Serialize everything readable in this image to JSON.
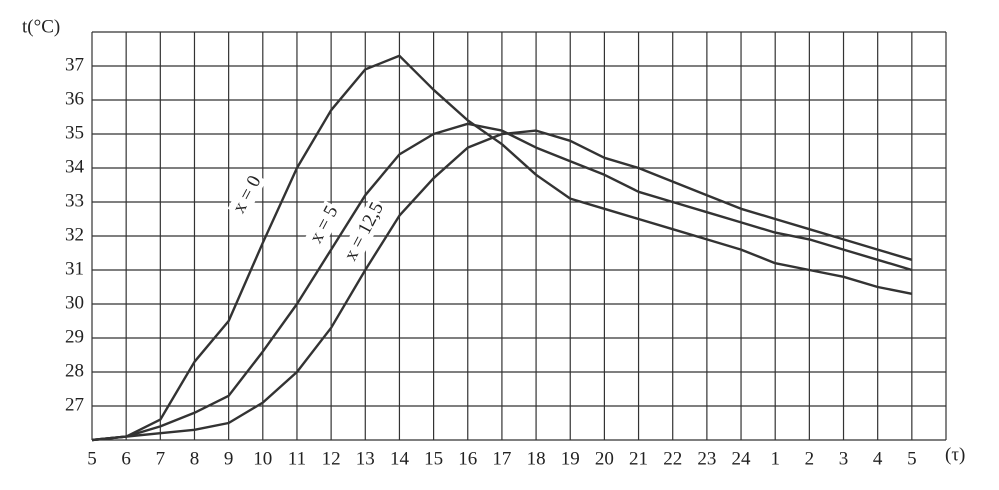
{
  "chart_data": {
    "type": "line",
    "y_label": "t(°C)",
    "x_label": "(τ)",
    "categories": [
      5,
      6,
      7,
      8,
      9,
      10,
      11,
      12,
      13,
      14,
      15,
      16,
      17,
      18,
      19,
      20,
      21,
      22,
      23,
      24,
      1,
      2,
      3,
      4,
      5
    ],
    "ylim": [
      26,
      38
    ],
    "yticks": [
      27,
      28,
      29,
      30,
      31,
      32,
      33,
      34,
      35,
      36,
      37
    ],
    "grid": true,
    "series": [
      {
        "name": "x = 0",
        "color": "#333333",
        "values": [
          26,
          26.1,
          26.6,
          28.3,
          29.5,
          31.8,
          34,
          35.7,
          36.9,
          37.3,
          36.3,
          35.4,
          34.7,
          33.8,
          33.1,
          32.8,
          32.5,
          32.2,
          31.9,
          31.6,
          31.2,
          31.0,
          30.8,
          30.5,
          30.3
        ]
      },
      {
        "name": "x = 5",
        "color": "#333333",
        "values": [
          26,
          26.1,
          26.4,
          26.8,
          27.3,
          28.6,
          30,
          31.6,
          33.2,
          34.4,
          35,
          35.3,
          35.1,
          34.6,
          34.2,
          33.8,
          33.3,
          33.0,
          32.7,
          32.4,
          32.1,
          31.9,
          31.6,
          31.3,
          31.0
        ]
      },
      {
        "name": "x = 12,5",
        "color": "#333333",
        "values": [
          26,
          26.1,
          26.2,
          26.3,
          26.5,
          27.1,
          28,
          29.3,
          31,
          32.6,
          33.7,
          34.6,
          35.0,
          35.1,
          34.8,
          34.3,
          34.0,
          33.6,
          33.2,
          32.8,
          32.5,
          32.2,
          31.9,
          31.6,
          31.3
        ]
      }
    ]
  }
}
